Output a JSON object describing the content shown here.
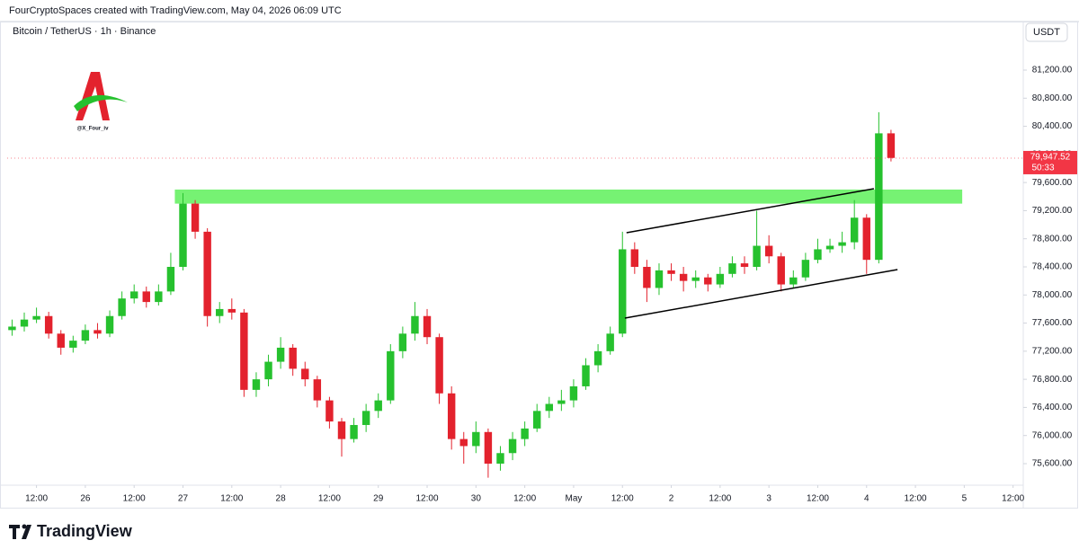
{
  "attribution": "FourCryptoSpaces created with TradingView.com, May 04, 2026 06:09 UTC",
  "footer": "TradingView",
  "watermark": "@X_Four_iv",
  "chart_data": {
    "type": "candlestick",
    "title": "Bitcoin / TetherUS · 1h · Binance",
    "currency": "USDT",
    "up_color": "#26c12e",
    "down_color": "#e3222d",
    "x": [
      -18,
      -15,
      -12,
      -9,
      -6,
      -3,
      0,
      3,
      6,
      9,
      12,
      15,
      18,
      21,
      24,
      27,
      30,
      33,
      36,
      39,
      42,
      45,
      48,
      51,
      54,
      57,
      60,
      63,
      66,
      69,
      72,
      75,
      78,
      81,
      84,
      87,
      90,
      93,
      96,
      99,
      102,
      105,
      108,
      111,
      114,
      117,
      120,
      123,
      126,
      129,
      132,
      135,
      138,
      141,
      144,
      147,
      150,
      153,
      156,
      159,
      162,
      165,
      168,
      171,
      174,
      177,
      180,
      183,
      186,
      189,
      192,
      195,
      198
    ],
    "open": [
      77500,
      77550,
      77650,
      77700,
      77450,
      77250,
      77350,
      77500,
      77450,
      77700,
      77950,
      78050,
      77900,
      78050,
      78400,
      79300,
      78900,
      77700,
      77800,
      77750,
      76650,
      76800,
      77050,
      77250,
      76950,
      76800,
      76500,
      76200,
      75950,
      76150,
      76350,
      76500,
      77200,
      77450,
      77700,
      77400,
      76600,
      75950,
      75850,
      76050,
      75600,
      75750,
      75950,
      76100,
      76350,
      76450,
      76500,
      76700,
      77000,
      77200,
      77450,
      78650,
      78400,
      78100,
      78350,
      78300,
      78200,
      78250,
      78150,
      78300,
      78450,
      78400,
      78700,
      78550,
      78150,
      78250,
      78500,
      78650,
      78700,
      78750,
      79100,
      78500,
      80300
    ],
    "high": [
      77650,
      77750,
      77820,
      77760,
      77500,
      77420,
      77580,
      77600,
      77780,
      78050,
      78150,
      78120,
      78150,
      78600,
      79450,
      79350,
      78950,
      77900,
      77950,
      77800,
      76900,
      77150,
      77400,
      77300,
      77050,
      76850,
      76550,
      76250,
      76250,
      76450,
      76600,
      77300,
      77550,
      77900,
      77800,
      77450,
      76700,
      76050,
      76200,
      76100,
      75850,
      76050,
      76200,
      76450,
      76550,
      76650,
      76800,
      77100,
      77300,
      77550,
      78900,
      78750,
      78500,
      78450,
      78450,
      78400,
      78350,
      78300,
      78400,
      78550,
      78550,
      79200,
      78850,
      78600,
      78350,
      78600,
      78800,
      78800,
      78900,
      79350,
      79150,
      80600,
      80350
    ],
    "low": [
      77420,
      77480,
      77600,
      77380,
      77150,
      77180,
      77300,
      77380,
      77400,
      77650,
      77880,
      77820,
      77850,
      78000,
      78350,
      78800,
      77550,
      77600,
      77650,
      76550,
      76550,
      76700,
      76950,
      76850,
      76700,
      76400,
      76100,
      75700,
      75900,
      76050,
      76250,
      76450,
      77100,
      77350,
      77300,
      76450,
      75800,
      75600,
      75750,
      75400,
      75500,
      75650,
      75850,
      76050,
      76250,
      76350,
      76400,
      76650,
      76900,
      77150,
      77400,
      78300,
      77900,
      78000,
      78200,
      78050,
      78100,
      78050,
      78100,
      78250,
      78300,
      78350,
      78450,
      78050,
      78100,
      78200,
      78450,
      78600,
      78600,
      78650,
      78300,
      78450,
      79900
    ],
    "close": [
      77550,
      77650,
      77700,
      77450,
      77250,
      77350,
      77500,
      77450,
      77700,
      77950,
      78050,
      77900,
      78050,
      78400,
      79300,
      78900,
      77700,
      77800,
      77750,
      76650,
      76800,
      77050,
      77250,
      76950,
      76800,
      76500,
      76200,
      75950,
      76150,
      76350,
      76500,
      77200,
      77450,
      77700,
      77400,
      76600,
      75950,
      75850,
      76050,
      75600,
      75750,
      75950,
      76100,
      76350,
      76450,
      76500,
      76700,
      77000,
      77200,
      77450,
      78650,
      78400,
      78100,
      78350,
      78300,
      78200,
      78250,
      78150,
      78300,
      78450,
      78400,
      78700,
      78550,
      78150,
      78250,
      78500,
      78650,
      78700,
      78750,
      79100,
      78500,
      80300,
      79950
    ],
    "xlim": [
      -19.2,
      230.5
    ],
    "ylim": [
      75293,
      81558
    ],
    "xticks": [
      {
        "value": -12,
        "label": "12:00"
      },
      {
        "value": 0,
        "label": "26"
      },
      {
        "value": 12,
        "label": "12:00"
      },
      {
        "value": 24,
        "label": "27"
      },
      {
        "value": 36,
        "label": "12:00"
      },
      {
        "value": 48,
        "label": "28"
      },
      {
        "value": 60,
        "label": "12:00"
      },
      {
        "value": 72,
        "label": "29"
      },
      {
        "value": 84,
        "label": "12:00"
      },
      {
        "value": 96,
        "label": "30"
      },
      {
        "value": 108,
        "label": "12:00"
      },
      {
        "value": 120,
        "label": "May"
      },
      {
        "value": 132,
        "label": "12:00"
      },
      {
        "value": 144,
        "label": "2"
      },
      {
        "value": 156,
        "label": "12:00"
      },
      {
        "value": 168,
        "label": "3"
      },
      {
        "value": 180,
        "label": "12:00"
      },
      {
        "value": 192,
        "label": "4"
      },
      {
        "value": 204,
        "label": "12:00"
      },
      {
        "value": 216,
        "label": "5"
      },
      {
        "value": 228,
        "label": "12:00"
      }
    ],
    "yticks": [
      {
        "value": 75600,
        "label": "75,600.00"
      },
      {
        "value": 76000,
        "label": "76,000.00"
      },
      {
        "value": 76400,
        "label": "76,400.00"
      },
      {
        "value": 76800,
        "label": "76,800.00"
      },
      {
        "value": 77200,
        "label": "77,200.00"
      },
      {
        "value": 77600,
        "label": "77,600.00"
      },
      {
        "value": 78000,
        "label": "78,000.00"
      },
      {
        "value": 78400,
        "label": "78,400.00"
      },
      {
        "value": 78800,
        "label": "78,800.00"
      },
      {
        "value": 79200,
        "label": "79,200.00"
      },
      {
        "value": 79600,
        "label": "79,600.00"
      },
      {
        "value": 80000,
        "label": "80,000.00"
      },
      {
        "value": 80400,
        "label": "80,400.00"
      },
      {
        "value": 80800,
        "label": "80,800.00"
      },
      {
        "value": 81200,
        "label": "81,200.00"
      }
    ],
    "grid": false,
    "last_price": {
      "value": 79947.52,
      "label": "79,947.52"
    },
    "countdown": "50:33",
    "last_price_color": "#f23645",
    "zone": {
      "x": [
        22,
        215.5
      ],
      "y": [
        79300,
        79500
      ],
      "color": "#5ef05a"
    },
    "trendlines": [
      {
        "x": [
          133,
          193.8
        ],
        "y": [
          78886,
          79512
        ],
        "color": "#000000"
      },
      {
        "x": [
          132.6,
          199.6
        ],
        "y": [
          77671,
          78361
        ],
        "color": "#000000"
      }
    ]
  }
}
